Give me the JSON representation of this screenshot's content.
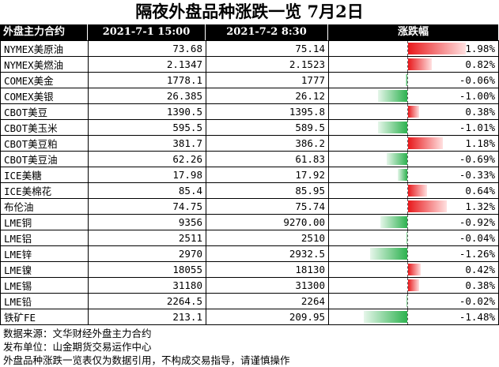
{
  "title": "隔夜外盘品种涨跌一览 7月2日",
  "headers": {
    "name": "外盘主力合约",
    "prev": "2021-7-1 15:00",
    "curr": "2021-7-2 8:30",
    "chg": "涨跌幅"
  },
  "rows": [
    {
      "name": "NYMEX美原油",
      "prev": "73.68",
      "curr": "75.14",
      "chg": "1.98%",
      "chg_value": 1.98
    },
    {
      "name": "NYMEX美燃油",
      "prev": "2.1347",
      "curr": "2.1523",
      "chg": "0.82%",
      "chg_value": 0.82
    },
    {
      "name": "COMEX美金",
      "prev": "1778.1",
      "curr": "1777",
      "chg": "-0.06%",
      "chg_value": -0.06
    },
    {
      "name": "COMEX美银",
      "prev": "26.385",
      "curr": "26.12",
      "chg": "-1.00%",
      "chg_value": -1.0
    },
    {
      "name": "CBOT美豆",
      "prev": "1390.5",
      "curr": "1395.8",
      "chg": "0.38%",
      "chg_value": 0.38
    },
    {
      "name": "CBOT美玉米",
      "prev": "595.5",
      "curr": "589.5",
      "chg": "-1.01%",
      "chg_value": -1.01
    },
    {
      "name": "CBOT美豆粕",
      "prev": "381.7",
      "curr": "386.2",
      "chg": "1.18%",
      "chg_value": 1.18
    },
    {
      "name": "CBOT美豆油",
      "prev": "62.26",
      "curr": "61.83",
      "chg": "-0.69%",
      "chg_value": -0.69
    },
    {
      "name": "ICE美糖",
      "prev": "17.98",
      "curr": "17.92",
      "chg": "-0.33%",
      "chg_value": -0.33
    },
    {
      "name": "ICE美棉花",
      "prev": "85.4",
      "curr": "85.95",
      "chg": "0.64%",
      "chg_value": 0.64
    },
    {
      "name": "布伦油",
      "prev": "74.75",
      "curr": "75.74",
      "chg": "1.32%",
      "chg_value": 1.32
    },
    {
      "name": "LME铜",
      "prev": "9356",
      "curr": "9270.00",
      "chg": "-0.92%",
      "chg_value": -0.92
    },
    {
      "name": "LME铝",
      "prev": "2511",
      "curr": "2510",
      "chg": "-0.04%",
      "chg_value": -0.04
    },
    {
      "name": "LME锌",
      "prev": "2970",
      "curr": "2932.5",
      "chg": "-1.26%",
      "chg_value": -1.26
    },
    {
      "name": "LME镍",
      "prev": "18055",
      "curr": "18130",
      "chg": "0.42%",
      "chg_value": 0.42
    },
    {
      "name": "LME锡",
      "prev": "31180",
      "curr": "31300",
      "chg": "0.38%",
      "chg_value": 0.38
    },
    {
      "name": "LME铅",
      "prev": "2264.5",
      "curr": "2264",
      "chg": "-0.02%",
      "chg_value": -0.02
    },
    {
      "name": "铁矿FE",
      "prev": "213.1",
      "curr": "209.95",
      "chg": "-1.48%",
      "chg_value": -1.48
    }
  ],
  "colors": {
    "up": "#e8191c",
    "down": "#2db24f",
    "header_bg": "#000000"
  },
  "footer": {
    "source": "数据来源：文华财经外盘主力合约",
    "publisher": "发布单位：山金期货交易运作中心",
    "disclaimer": "外盘品种涨跌一览表仅为数据引用，不构成交易指导，请谨慎操作"
  }
}
